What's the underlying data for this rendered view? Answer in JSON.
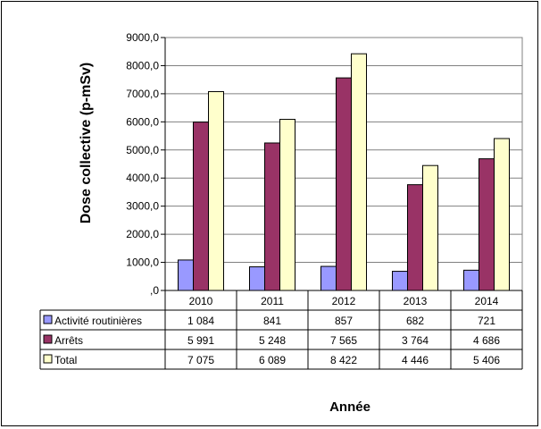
{
  "chart_data": {
    "type": "bar",
    "title": "",
    "xlabel": "Année",
    "ylabel": "Dose collective (p-mSv)",
    "ylim": [
      0,
      9000
    ],
    "yticks": [
      0,
      1000,
      2000,
      3000,
      4000,
      5000,
      6000,
      7000,
      8000,
      9000
    ],
    "ytick_labels": [
      ",0",
      "1000,0",
      "2000,0",
      "3000,0",
      "4000,0",
      "5000,0",
      "6000,0",
      "7000,0",
      "8000,0",
      "9000,0"
    ],
    "grid": "horizontal",
    "legend": "data-table",
    "categories": [
      "2010",
      "2011",
      "2012",
      "2013",
      "2014"
    ],
    "series": [
      {
        "name": "Activité routinières",
        "color": "#9999ff",
        "values": [
          1084,
          841,
          857,
          682,
          721
        ],
        "labels": [
          "1 084",
          "841",
          "857",
          "682",
          "721"
        ]
      },
      {
        "name": "Arrêts",
        "color": "#993366",
        "values": [
          5991,
          5248,
          7565,
          3764,
          4686
        ],
        "labels": [
          "5 991",
          "5 248",
          "7 565",
          "3 764",
          "4 686"
        ]
      },
      {
        "name": "Total",
        "color": "#ffffcc",
        "values": [
          7075,
          6089,
          8422,
          4446,
          5406
        ],
        "labels": [
          "7 075",
          "6 089",
          "8 422",
          "4 446",
          "5 406"
        ]
      }
    ]
  }
}
